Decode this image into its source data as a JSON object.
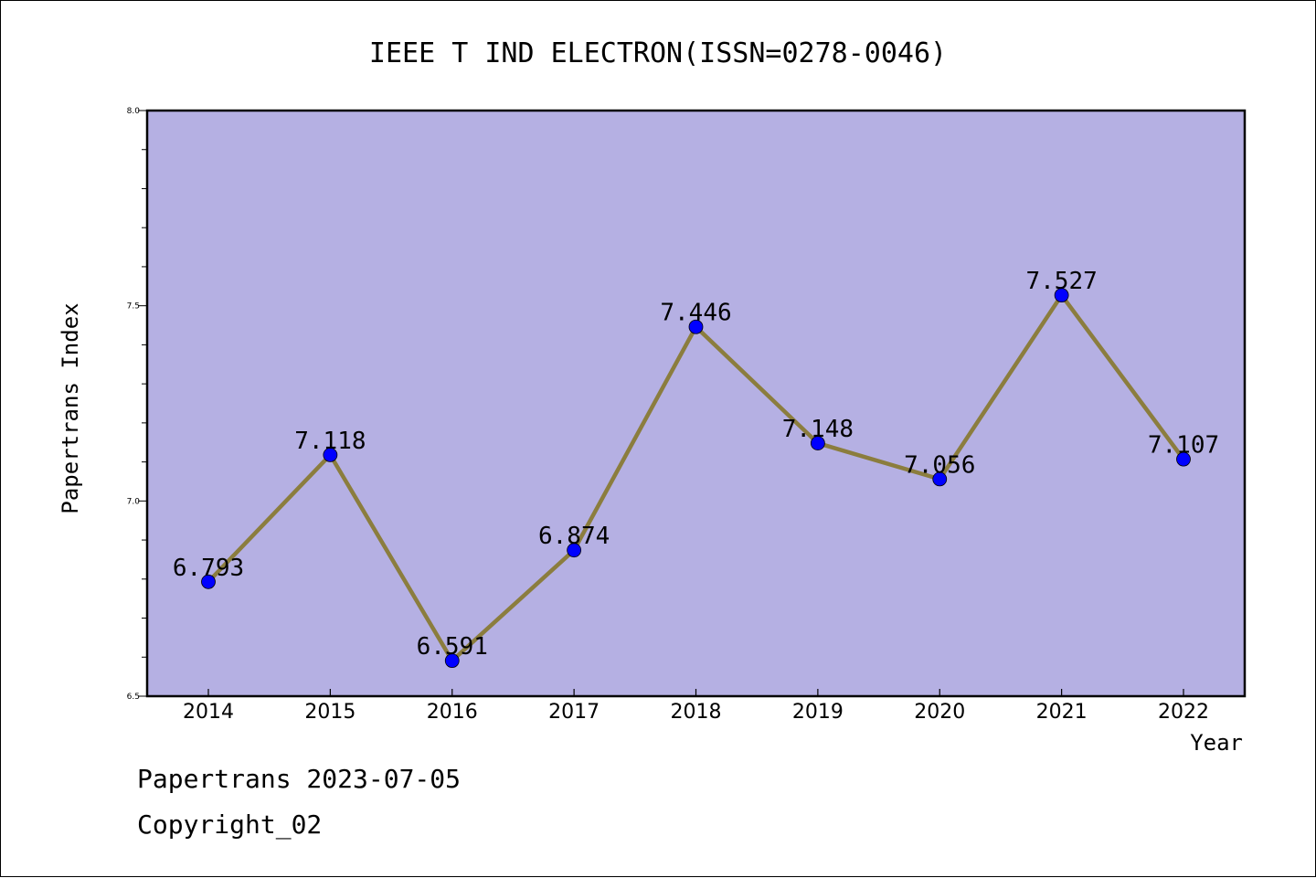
{
  "chart_data": {
    "type": "line",
    "title": "IEEE T IND ELECTRON(ISSN=0278-0046)",
    "xlabel": "Year",
    "ylabel": "Papertrans Index",
    "categories": [
      "2014",
      "2015",
      "2016",
      "2017",
      "2018",
      "2019",
      "2020",
      "2021",
      "2022"
    ],
    "series": [
      {
        "values": [
          6.793,
          7.118,
          6.591,
          6.874,
          7.446,
          7.148,
          7.056,
          7.527,
          7.107
        ],
        "labels": [
          "6.793",
          "7.118",
          "6.591",
          "6.874",
          "7.446",
          "7.148",
          "7.056",
          "7.527",
          "7.107"
        ]
      }
    ],
    "ylim": [
      6.5,
      8.0
    ],
    "yticks": [
      "6.5",
      "7.0",
      "7.5",
      "8.0"
    ],
    "grid": false,
    "colors": {
      "plot_bg": "#b5b0e3",
      "line": "#8b7d3e",
      "marker": "#0000ff"
    }
  },
  "footer": {
    "line1": "Papertrans 2023-07-05",
    "line2": "Copyright_02"
  }
}
